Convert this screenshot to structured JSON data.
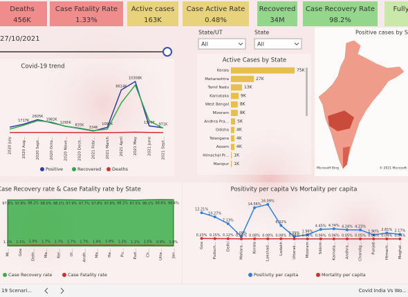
{
  "kpis": [
    {
      "label": "Deaths",
      "value": "456K",
      "color": "#f08c8c"
    },
    {
      "label": "Case Fatality Rate",
      "value": "1.33%",
      "color": "#f08c8c"
    },
    {
      "label": "Active cases",
      "value": "163K",
      "color": "#e9d27c"
    },
    {
      "label": "Case Active Rate",
      "value": "0.48%",
      "color": "#e9d27c"
    },
    {
      "label": "Recovered",
      "value": "34M",
      "color": "#93d68c"
    },
    {
      "label": "Case Recovery Rate",
      "value": "98.2%",
      "color": "#93d68c"
    },
    {
      "label": "Fully",
      "color": "#c9e8a9"
    }
  ],
  "date": "27/10/2021",
  "filters": [
    {
      "label": "State/UT",
      "value": "All"
    },
    {
      "label": "State",
      "value": "All"
    }
  ],
  "map": {
    "title": "Positive cases by State",
    "credits": [
      "Microsoft Bing",
      "© 2021 Microsoft"
    ]
  },
  "chart_data": [
    {
      "type": "line",
      "title": "Covid-19 trend",
      "categories": [
        "2020 July",
        "2020 Aug...",
        "2020 Sept...",
        "2020 Octo...",
        "2020 Nove...",
        "2020 Dece...",
        "2021 Febr...",
        "2021 March",
        "2021 April",
        "2021 May",
        "2021 June",
        "2021 Sept..."
      ],
      "series": [
        {
          "name": "Positive",
          "color": "#2a3fa0",
          "values": [
            1100,
            1717,
            2605,
            1982,
            1295,
            835,
            334,
            1069,
            8614,
            10308,
            1354,
            971
          ],
          "value_labels": [
            null,
            "1717K",
            "2605K",
            "1982K",
            "1295K",
            "835K",
            "334K",
            "1069K",
            "8614K",
            "10308K",
            "1354K",
            "971K"
          ]
        },
        {
          "name": "Recovered",
          "color": "#2fa84a",
          "values": [
            700,
            1500,
            2400,
            2100,
            1250,
            900,
            400,
            700,
            6000,
            9600,
            2400,
            900
          ]
        },
        {
          "name": "Deaths",
          "color": "#d32f2f",
          "values": [
            20,
            30,
            33,
            30,
            20,
            12,
            3,
            5,
            40,
            80,
            30,
            10
          ]
        }
      ]
    },
    {
      "type": "bar",
      "orientation": "horizontal",
      "title": "Active Cases by State",
      "color": "#e6bf4e",
      "categories": [
        "Kerala",
        "Maharashtra",
        "Tamil Nadu",
        "Karnataka",
        "West Bengal",
        "Mizoram",
        "Andhra Pra...",
        "Odisha",
        "Telangana",
        "Assam",
        "Himachal Pr...",
        "Manipur"
      ],
      "values": [
        75000,
        27000,
        13000,
        9000,
        8000,
        8000,
        5000,
        4000,
        4000,
        4000,
        1000,
        1000
      ],
      "value_labels": [
        "75K",
        "27K",
        "13K",
        "9K",
        "8K",
        "8K",
        "5K",
        "4K",
        "4K",
        "4K",
        "1K",
        "1K"
      ]
    },
    {
      "type": "area",
      "title": "Case Recovery rate & Case Fatality rate by State",
      "ylim": [
        0,
        100
      ],
      "categories": [
        "Mi...",
        "Goa",
        "Delh...",
        "Ma...",
        "Ker...",
        "Ut...",
        "Andh...",
        "Ma...",
        "Ha...",
        "Pu...",
        "Pud...",
        "Ch...",
        "Utta...",
        "Jan..."
      ],
      "series": [
        {
          "name": "Case Recovery rate",
          "color": "#3cae4a",
          "area": true,
          "values": [
            97.8,
            97.8,
            98.2,
            98.0,
            98.1,
            97.9,
            97.7,
            97.8,
            97.8,
            98.2,
            97.5,
            98.1,
            98.6,
            98.4
          ],
          "value_labels": [
            "97.8%",
            "97.8%",
            "98.2%",
            "98.0%",
            "98.1%",
            "97.9%",
            "97.7%",
            "97.8%",
            "97.8%",
            "98.2%",
            "97.5%",
            "98.1%",
            "98.6%",
            "98.4%"
          ]
        },
        {
          "name": "Case Fatality rate",
          "color": "#d32f2f",
          "values": [
            1.1,
            1.1,
            1.9,
            1.7,
            1.7,
            1.7,
            1.7,
            1.4,
            1.9,
            1.3,
            1.1,
            1.5,
            0.9,
            1.0
          ],
          "value_labels": [
            "1.1%",
            "1.1%",
            "1.9%",
            "1.7%",
            "1.7%",
            "1.7%",
            "1.7%",
            "1.4%",
            "1.9%",
            "1.3%",
            "1.1%",
            "1.5%",
            "0.9%",
            "1.0%"
          ]
        }
      ]
    },
    {
      "type": "line",
      "title": "Positivity per capita Vs Mortality per capita",
      "markers": true,
      "ylim": [
        0,
        18
      ],
      "categories": [
        "Goa",
        "Puduch...",
        "Delhi",
        "Mahara...",
        "Kerala",
        "Lakshad...",
        "Ladakh",
        "Uttarak...",
        "Mizoram",
        "Sikkim",
        "Karnata...",
        "Andhra...",
        "Chandig...",
        "Punjab",
        "Himach...",
        "Meghal..."
      ],
      "series": [
        {
          "name": "Positivity per capita",
          "color": "#2f7fe0",
          "values": [
            12.21,
            10.27,
            7.13,
            1.09,
            14.56,
            16.09,
            6.32,
            1.09,
            1.98,
            4.45,
            4.74,
            4.24,
            4.23,
            1.9,
            2.81,
            2.17
          ],
          "value_labels": [
            "12.21%",
            "10.27%",
            "7.13%",
            "1.09%",
            "14.56%",
            "16.09%",
            "6.32%",
            "1.09%",
            "1.98%",
            "4.45%",
            "4.74%",
            "4.24%",
            "4.23%",
            "1.90%",
            "2.81%",
            "2.17%"
          ]
        },
        {
          "name": "Mortality per capita",
          "color": "#d32f2f",
          "values": [
            0.23,
            0.15,
            0.12,
            0.05,
            0.08,
            0.08,
            0.08,
            0.08,
            0.06,
            0.06,
            0.06,
            0.05,
            0.05,
            0.06,
            0.04,
            0.04
          ],
          "value_labels": [
            "0.23%",
            "0.15%",
            "0.12%",
            "0.05%",
            "0.08%",
            "0.08%",
            "0.08%",
            "0.08%",
            "0.06%",
            "0.06%",
            "0.06%",
            "0.05%",
            "0.05%",
            "0.06%",
            "0.04%",
            "0.04%"
          ]
        }
      ]
    }
  ],
  "footer": {
    "tab": "19 Scenari...",
    "link": "Covid India Vs Wo..."
  }
}
